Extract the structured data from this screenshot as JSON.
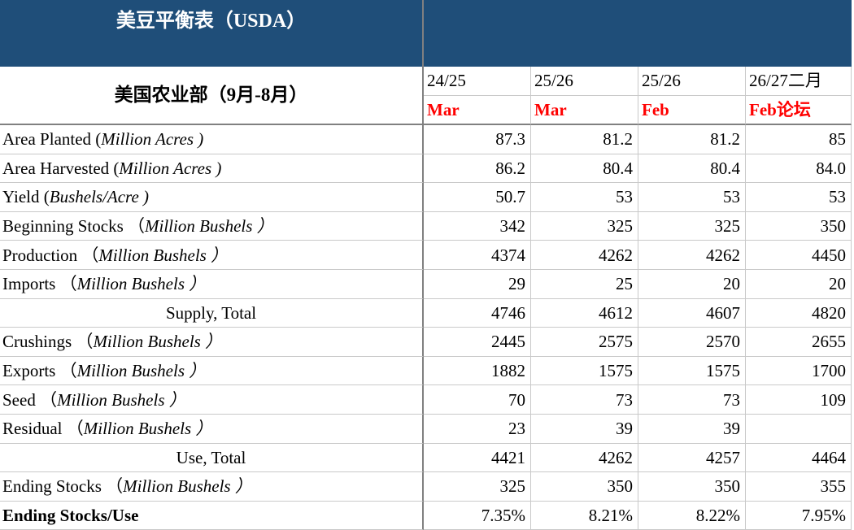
{
  "colors": {
    "header_bg": "#1F4E79",
    "header_text": "#FFFFFF",
    "month_red": "#FF0000",
    "grid_light": "#C9C9C9",
    "grid_dark": "#808080",
    "text_black": "#000000"
  },
  "table": {
    "title": "美豆平衡表（USDA）",
    "subtitle": "美国农业部（9月-8月）",
    "columns": [
      {
        "year": "24/25",
        "month": "Mar"
      },
      {
        "year": "25/26",
        "month": "Mar"
      },
      {
        "year": "25/26",
        "month": "Feb"
      },
      {
        "year": "26/27二月",
        "month": "Feb论坛"
      }
    ],
    "rows": [
      {
        "label": "Area Planted (",
        "unit": "Million Acres )",
        "values": [
          "87.3",
          "81.2",
          "81.2",
          "85"
        ]
      },
      {
        "label": "Area Harvested (",
        "unit": "Million Acres )",
        "values": [
          "86.2",
          "80.4",
          "80.4",
          "84.0"
        ]
      },
      {
        "label": "Yield (",
        "unit": "Bushels/Acre )",
        "values": [
          "50.7",
          "53",
          "53",
          "53"
        ]
      },
      {
        "label": "Beginning Stocks （",
        "unit": "Million Bushels ）",
        "values": [
          "342",
          "325",
          "325",
          "350"
        ]
      },
      {
        "label": "Production （",
        "unit": "Million Bushels ）",
        "values": [
          "4374",
          "4262",
          "4262",
          "4450"
        ]
      },
      {
        "label": "Imports （",
        "unit": "Million Bushels ）",
        "values": [
          "29",
          "25",
          "20",
          "20"
        ]
      },
      {
        "label": "Supply, Total",
        "unit": "",
        "values": [
          "4746",
          "4612",
          "4607",
          "4820"
        ]
      },
      {
        "label": "Crushings （",
        "unit": "Million Bushels ）",
        "values": [
          "2445",
          "2575",
          "2570",
          "2655"
        ]
      },
      {
        "label": "Exports （",
        "unit": "Million Bushels ）",
        "values": [
          "1882",
          "1575",
          "1575",
          "1700"
        ]
      },
      {
        "label": "Seed （",
        "unit": "Million Bushels ）",
        "values": [
          "70",
          "73",
          "73",
          "109"
        ]
      },
      {
        "label": "Residual （",
        "unit": "Million Bushels ）",
        "values": [
          "23",
          "39",
          "39",
          ""
        ]
      },
      {
        "label": "Use, Total",
        "unit": "",
        "values": [
          "4421",
          "4262",
          "4257",
          "4464"
        ]
      },
      {
        "label": "Ending Stocks （",
        "unit": "Million Bushels ）",
        "values": [
          "325",
          "350",
          "350",
          "355"
        ]
      },
      {
        "label": "Ending Stocks/Use",
        "unit": "",
        "values": [
          "7.35%",
          "8.21%",
          "8.22%",
          "7.95%"
        ]
      }
    ]
  }
}
